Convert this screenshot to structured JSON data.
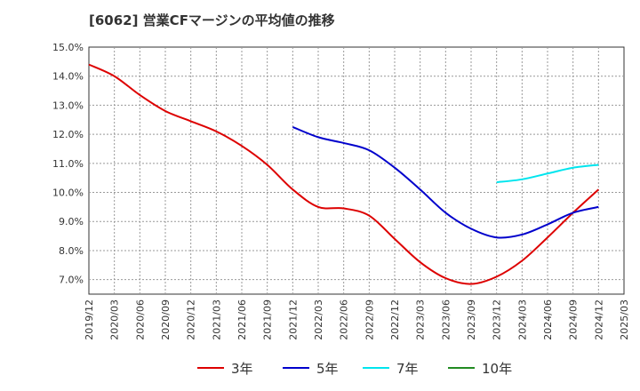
{
  "title": "[6062]  営業CFマージンの平均値の推移",
  "chart_data": {
    "type": "line",
    "title": "[6062]  営業CFマージンの平均値の推移",
    "xlabel": "",
    "ylabel": "",
    "grid": true,
    "legend_position": "bottom",
    "x_ticks": [
      "2019/12",
      "2020/03",
      "2020/06",
      "2020/09",
      "2020/12",
      "2021/03",
      "2021/06",
      "2021/09",
      "2021/12",
      "2022/03",
      "2022/06",
      "2022/09",
      "2022/12",
      "2023/03",
      "2023/06",
      "2023/09",
      "2023/12",
      "2024/03",
      "2024/06",
      "2024/09",
      "2024/12",
      "2025/03"
    ],
    "y_ticks": [
      "7.0%",
      "8.0%",
      "9.0%",
      "10.0%",
      "11.0%",
      "12.0%",
      "13.0%",
      "14.0%",
      "15.0%"
    ],
    "ylim": [
      6.5,
      15.0
    ],
    "series": [
      {
        "name": "3年",
        "color": "#dd0000",
        "x": [
          "2019/12",
          "2020/03",
          "2020/06",
          "2020/09",
          "2020/12",
          "2021/03",
          "2021/06",
          "2021/09",
          "2021/12",
          "2022/03",
          "2022/06",
          "2022/09",
          "2022/12",
          "2023/03",
          "2023/06",
          "2023/09",
          "2023/12",
          "2024/03",
          "2024/06",
          "2024/09",
          "2024/12"
        ],
        "values": [
          14.4,
          14.0,
          13.35,
          12.8,
          12.45,
          12.1,
          11.6,
          10.95,
          10.1,
          9.5,
          9.45,
          9.2,
          8.4,
          7.6,
          7.05,
          6.85,
          7.1,
          7.65,
          8.45,
          9.3,
          10.1
        ]
      },
      {
        "name": "5年",
        "color": "#0000cc",
        "x": [
          "2021/12",
          "2022/03",
          "2022/06",
          "2022/09",
          "2022/12",
          "2023/03",
          "2023/06",
          "2023/09",
          "2023/12",
          "2024/03",
          "2024/06",
          "2024/09",
          "2024/12"
        ],
        "values": [
          12.25,
          11.9,
          11.7,
          11.45,
          10.85,
          10.1,
          9.3,
          8.75,
          8.45,
          8.55,
          8.9,
          9.3,
          9.5
        ]
      },
      {
        "name": "7年",
        "color": "#00e5ee",
        "x": [
          "2023/12",
          "2024/03",
          "2024/06",
          "2024/09",
          "2024/12"
        ],
        "values": [
          10.35,
          10.45,
          10.65,
          10.85,
          10.95
        ]
      },
      {
        "name": "10年",
        "color": "#228b22",
        "x": [],
        "values": []
      }
    ]
  }
}
